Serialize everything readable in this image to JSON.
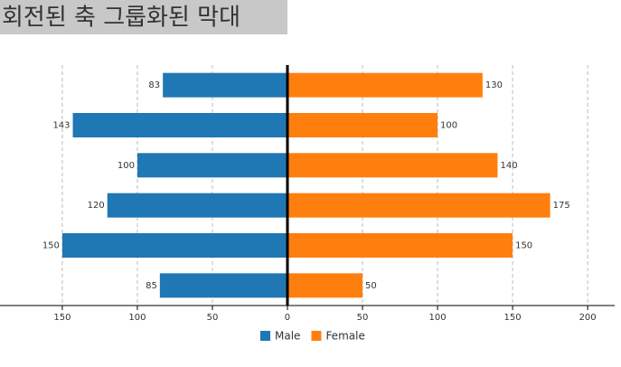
{
  "chart_data": {
    "type": "bar",
    "orientation": "horizontal",
    "title": "회전된 축 그룹화된 막대",
    "series": [
      {
        "name": "Male",
        "color": "#1f77b4",
        "values": [
          -83,
          -143,
          -100,
          -120,
          -150,
          -85
        ],
        "value_labels": [
          "83",
          "143",
          "100",
          "120",
          "150",
          "85"
        ]
      },
      {
        "name": "Female",
        "color": "#ff7f0e",
        "values": [
          130,
          100,
          140,
          175,
          150,
          50
        ]
      }
    ],
    "xlim": [
      -191.5,
      218
    ],
    "xticks": [
      {
        "value": -150,
        "label": "150"
      },
      {
        "value": -100,
        "label": "100"
      },
      {
        "value": -50,
        "label": "50"
      },
      0,
      50,
      100,
      150,
      200
    ],
    "grid": true,
    "legend": "bottom"
  }
}
